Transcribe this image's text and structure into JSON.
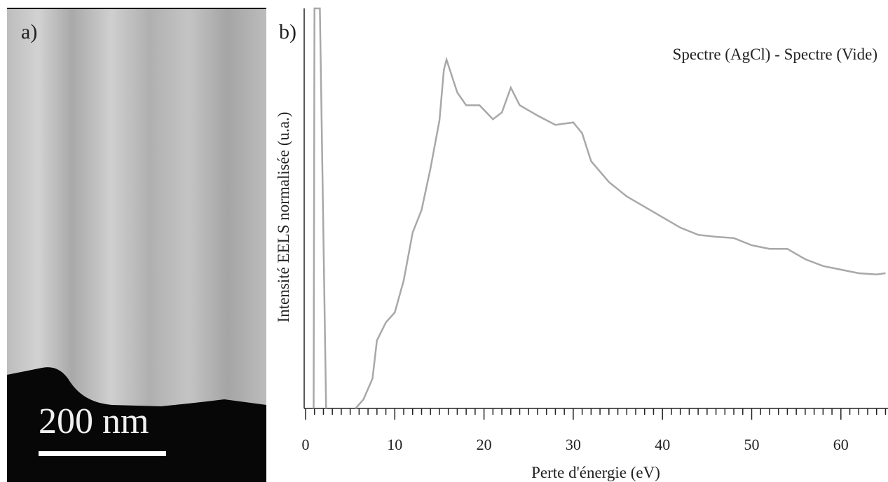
{
  "panel_a": {
    "label": "a)",
    "scale_label": "200 nm"
  },
  "panel_b": {
    "label": "b)"
  },
  "chart_data": {
    "type": "line",
    "annotation": "Spectre (AgCl) - Spectre (Vide)",
    "xlabel": "Perte d'énergie (eV)",
    "ylabel": "Intensité EELS normalisée (u.a.)",
    "xlim": [
      0,
      65
    ],
    "xticks": [
      0,
      10,
      20,
      30,
      40,
      50,
      60
    ],
    "xminorticks": [
      1,
      2,
      3,
      4,
      5,
      6,
      7,
      8,
      9,
      11,
      12,
      13,
      14,
      15,
      16,
      17,
      18,
      19,
      21,
      22,
      23,
      24,
      25,
      26,
      27,
      28,
      29,
      31,
      32,
      33,
      34,
      35,
      36,
      37,
      38,
      39,
      41,
      42,
      43,
      44,
      45,
      46,
      47,
      48,
      49,
      51,
      52,
      53,
      54,
      55,
      56,
      57,
      58,
      59,
      61,
      62,
      63,
      64,
      65
    ],
    "ylim": [
      0,
      100
    ],
    "series": [
      {
        "name": "Spectre (AgCl) - Spectre (Vide)",
        "color": "#a8a8a8",
        "x": [
          0.9,
          1.0,
          1.6,
          2.3,
          4,
          5.6,
          6.5,
          7.5,
          8,
          9,
          10,
          11,
          12,
          13,
          14,
          15,
          15.5,
          15.8,
          17,
          18,
          19.5,
          21,
          22,
          23,
          24,
          26,
          28,
          30,
          31,
          32,
          34,
          36,
          38,
          40,
          42,
          44,
          46,
          48,
          50,
          52,
          54,
          56,
          58,
          60,
          62,
          64,
          65
        ],
        "values": [
          0,
          100,
          100,
          0,
          null,
          0,
          2.3,
          7.5,
          17,
          21.5,
          24,
          32,
          44,
          49.6,
          60,
          72,
          84.6,
          87.2,
          79,
          75.8,
          75.8,
          72.3,
          74,
          80.2,
          75.8,
          73.2,
          70.9,
          71.5,
          68.8,
          61.8,
          56.6,
          53,
          50.4,
          47.8,
          45.2,
          43.4,
          42.9,
          42.6,
          40.8,
          39.9,
          39.9,
          37.3,
          35.6,
          34.7,
          33.8,
          33.5,
          33.8
        ]
      }
    ]
  }
}
